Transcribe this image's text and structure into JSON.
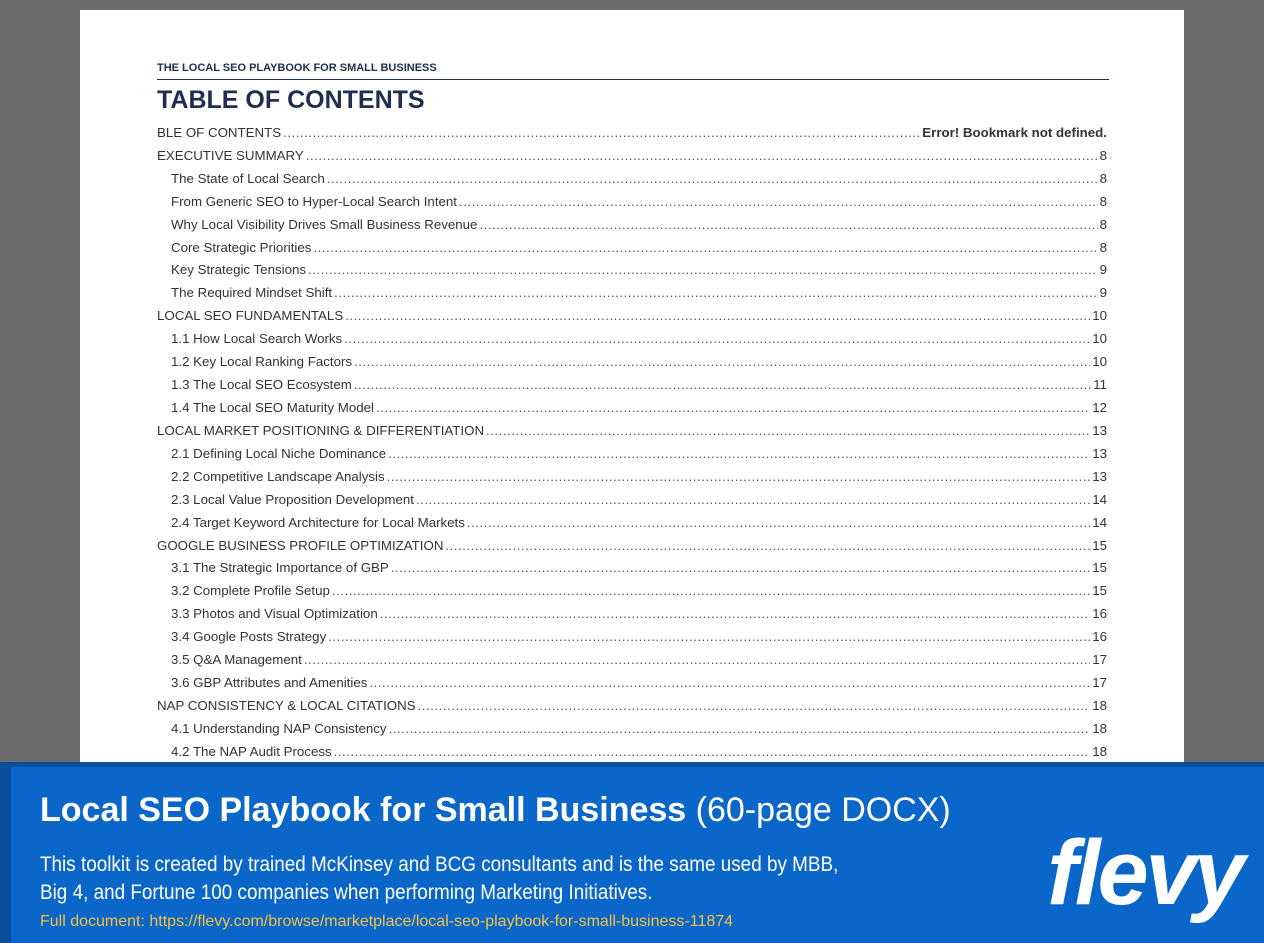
{
  "document": {
    "header": "THE LOCAL SEO PLAYBOOK FOR SMALL BUSINESS",
    "title": "TABLE OF CONTENTS",
    "entries": [
      {
        "text": "BLE OF CONTENTS",
        "page": "Error! Bookmark not defined.",
        "level": 1
      },
      {
        "text": "EXECUTIVE SUMMARY",
        "page": 8,
        "level": 1
      },
      {
        "text": "The State of Local Search",
        "page": 8,
        "level": 2
      },
      {
        "text": "From Generic SEO to Hyper-Local Search Intent",
        "page": 8,
        "level": 2
      },
      {
        "text": "Why Local Visibility Drives Small Business Revenue",
        "page": 8,
        "level": 2
      },
      {
        "text": "Core Strategic Priorities",
        "page": 8,
        "level": 2
      },
      {
        "text": "Key Strategic Tensions",
        "page": 9,
        "level": 2
      },
      {
        "text": "The Required Mindset Shift",
        "page": 9,
        "level": 2
      },
      {
        "text": "LOCAL SEO FUNDAMENTALS",
        "page": 10,
        "level": 1
      },
      {
        "text": "1.1 How Local Search Works",
        "page": 10,
        "level": 2
      },
      {
        "text": "1.2 Key Local Ranking Factors",
        "page": 10,
        "level": 2
      },
      {
        "text": "1.3 The Local SEO Ecosystem",
        "page": 11,
        "level": 2
      },
      {
        "text": "1.4 The Local SEO Maturity Model",
        "page": 12,
        "level": 2
      },
      {
        "text": "LOCAL MARKET POSITIONING & DIFFERENTIATION",
        "page": 13,
        "level": 1
      },
      {
        "text": "2.1 Defining Local Niche Dominance",
        "page": 13,
        "level": 2
      },
      {
        "text": "2.2 Competitive Landscape Analysis",
        "page": 13,
        "level": 2
      },
      {
        "text": "2.3 Local Value Proposition Development",
        "page": 14,
        "level": 2
      },
      {
        "text": "2.4 Target Keyword Architecture for Local Markets",
        "page": 14,
        "level": 2
      },
      {
        "text": "GOOGLE BUSINESS PROFILE OPTIMIZATION",
        "page": 15,
        "level": 1
      },
      {
        "text": "3.1 The Strategic Importance of GBP",
        "page": 15,
        "level": 2
      },
      {
        "text": "3.2 Complete Profile Setup",
        "page": 15,
        "level": 2
      },
      {
        "text": "3.3 Photos and Visual Optimization",
        "page": 16,
        "level": 2
      },
      {
        "text": "3.4 Google Posts Strategy",
        "page": 16,
        "level": 2
      },
      {
        "text": "3.5 Q&A Management",
        "page": 17,
        "level": 2
      },
      {
        "text": "3.6 GBP Attributes and Amenities",
        "page": 17,
        "level": 2
      },
      {
        "text": "NAP CONSISTENCY & LOCAL CITATIONS",
        "page": 18,
        "level": 1
      },
      {
        "text": "4.1 Understanding NAP Consistency",
        "page": 18,
        "level": 2
      },
      {
        "text": "4.2 The NAP Audit Process",
        "page": 18,
        "level": 2
      }
    ]
  },
  "banner": {
    "title": "Local SEO Playbook for Small Business",
    "subtitle": "(60-page DOCX)",
    "description": [
      "This toolkit is created by trained McKinsey and BCG consultants and is the same used by MBB,",
      "Big 4, and Fortune 100 companies when performing Marketing Initiatives."
    ],
    "link": "Full document: https://flevy.com/browse/marketplace/local-seo-playbook-for-small-business-11874",
    "logo": "flevy"
  }
}
